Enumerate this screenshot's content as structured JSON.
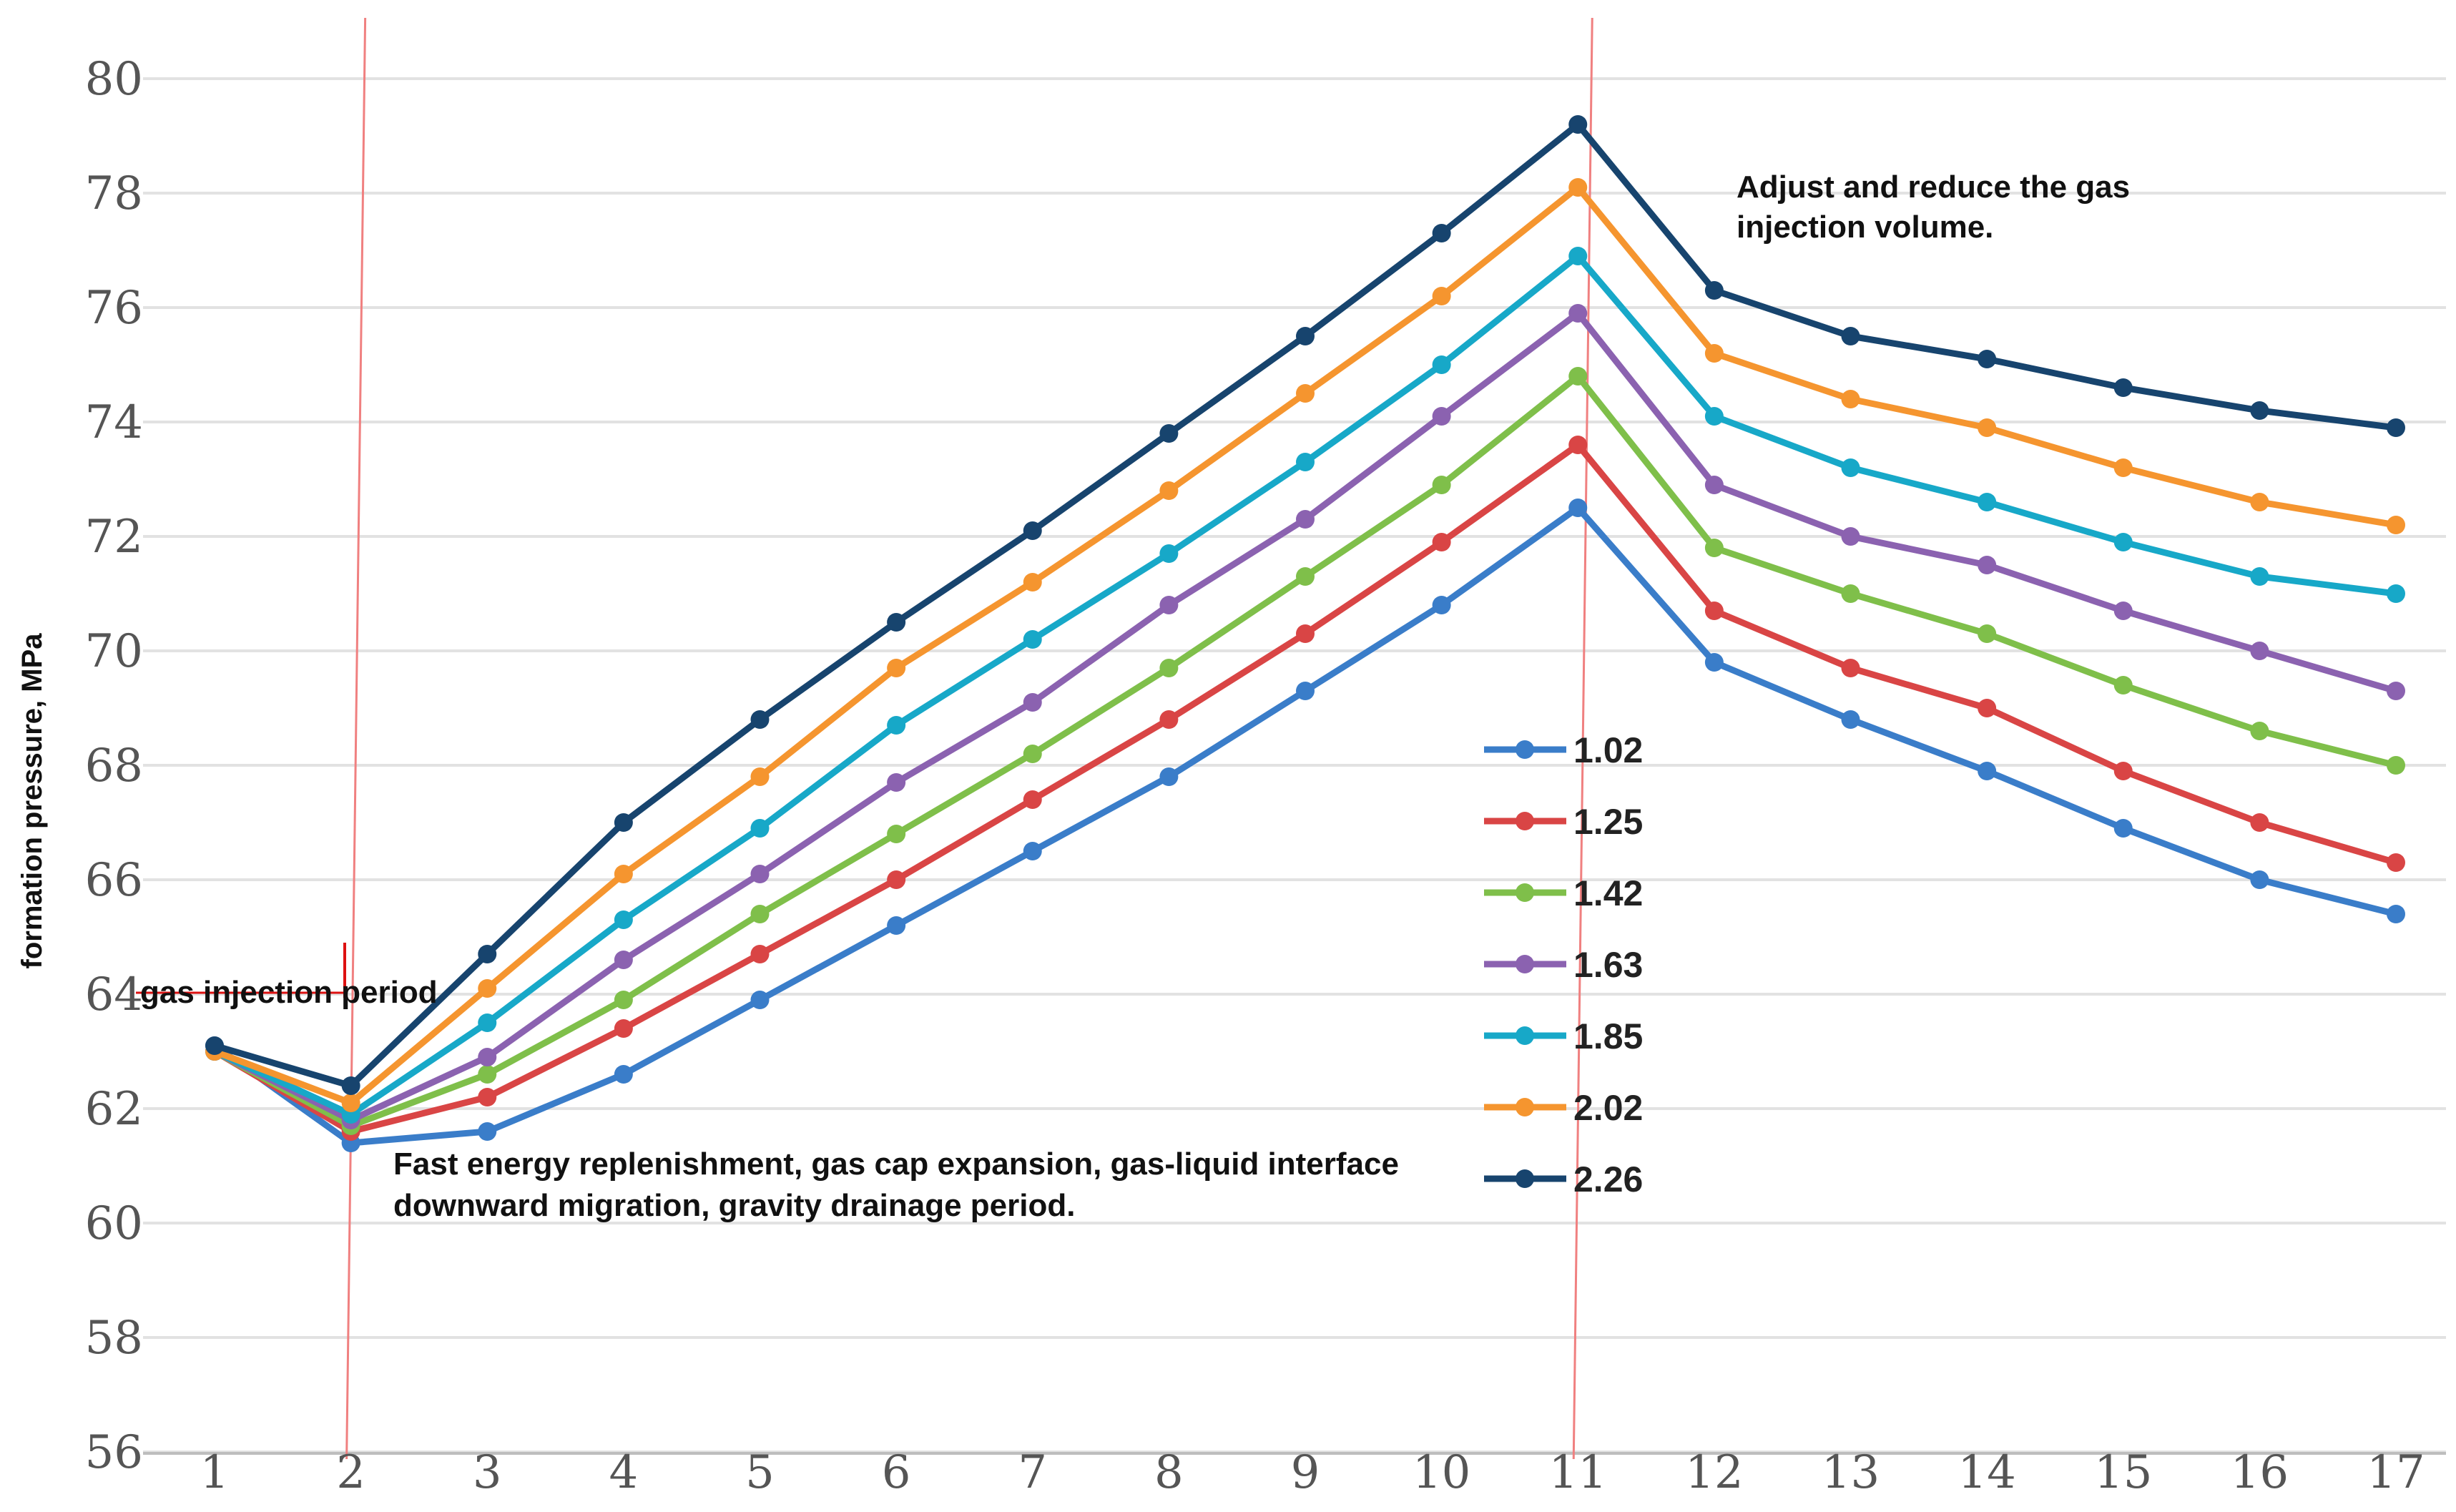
{
  "chart_data": {
    "type": "line",
    "title": "",
    "xlabel": "",
    "ylabel": "formation pressure,  MPa",
    "x": [
      1,
      2,
      3,
      4,
      5,
      6,
      7,
      8,
      9,
      10,
      11,
      12,
      13,
      14,
      15,
      16,
      17
    ],
    "xticks": [
      "1",
      "2",
      "3",
      "4",
      "5",
      "6",
      "7",
      "8",
      "9",
      "10",
      "11",
      "12",
      "13",
      "14",
      "15",
      "16",
      "17"
    ],
    "yticks": [
      "56",
      "58",
      "60",
      "62",
      "64",
      "66",
      "68",
      "70",
      "72",
      "74",
      "76",
      "78",
      "80"
    ],
    "ylim": [
      56,
      80
    ],
    "grid": true,
    "legend_position": "center-right",
    "series": [
      {
        "name": "1.02",
        "color": "#3a7dc9",
        "values": [
          63.1,
          61.4,
          61.6,
          62.6,
          63.9,
          65.2,
          66.5,
          67.8,
          69.3,
          70.8,
          72.5,
          69.8,
          68.8,
          67.9,
          66.9,
          66.0,
          65.4
        ]
      },
      {
        "name": "1.25",
        "color": "#d94545",
        "values": [
          63.0,
          61.6,
          62.2,
          63.4,
          64.7,
          66.0,
          67.4,
          68.8,
          70.3,
          71.9,
          73.6,
          70.7,
          69.7,
          69.0,
          67.9,
          67.0,
          66.3
        ]
      },
      {
        "name": "1.42",
        "color": "#7fbf4a",
        "values": [
          63.0,
          61.7,
          62.6,
          63.9,
          65.4,
          66.8,
          68.2,
          69.7,
          71.3,
          72.9,
          74.8,
          71.8,
          71.0,
          70.3,
          69.4,
          68.6,
          68.0
        ]
      },
      {
        "name": "1.63",
        "color": "#8b62b0",
        "values": [
          63.0,
          61.8,
          62.9,
          64.6,
          66.1,
          67.7,
          69.1,
          70.8,
          72.3,
          74.1,
          75.9,
          72.9,
          72.0,
          71.5,
          70.7,
          70.0,
          69.3
        ]
      },
      {
        "name": "1.85",
        "color": "#17a8c8",
        "values": [
          63.0,
          61.9,
          63.5,
          65.3,
          66.9,
          68.7,
          70.2,
          71.7,
          73.3,
          75.0,
          76.9,
          74.1,
          73.2,
          72.6,
          71.9,
          71.3,
          71.0
        ]
      },
      {
        "name": "2.02",
        "color": "#f5952f",
        "values": [
          63.0,
          62.1,
          64.1,
          66.1,
          67.8,
          69.7,
          71.2,
          72.8,
          74.5,
          76.2,
          78.1,
          75.2,
          74.4,
          73.9,
          73.2,
          72.6,
          72.2
        ]
      },
      {
        "name": "2.26",
        "color": "#17446e",
        "values": [
          63.1,
          62.4,
          64.7,
          67.0,
          68.8,
          70.5,
          72.1,
          73.8,
          75.5,
          77.3,
          79.2,
          76.3,
          75.5,
          75.1,
          74.6,
          74.2,
          73.9
        ]
      }
    ],
    "annotations": [
      {
        "id": "gas-injection",
        "text": "gas injection period"
      },
      {
        "id": "fast-energy",
        "lines": [
          "Fast energy replenishment, gas cap expansion, gas-liquid interface",
          "downward migration, gravity drainage period."
        ]
      },
      {
        "id": "adjust",
        "lines": [
          "Adjust and reduce the gas",
          "injection volume."
        ]
      }
    ],
    "reference_lines_x": [
      2,
      11
    ]
  }
}
